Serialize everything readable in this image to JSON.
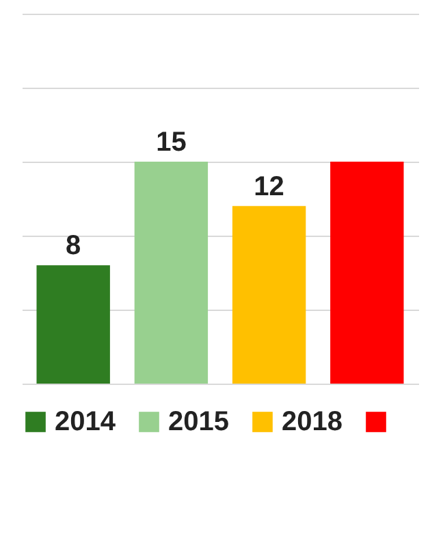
{
  "chart_data": {
    "type": "bar",
    "categories": [
      null,
      null,
      null,
      null
    ],
    "series": [
      {
        "name": "2014",
        "color": "#2f7d22",
        "values": [
          8,
          null,
          null,
          null
        ],
        "value_labels": [
          "8",
          null,
          null,
          null
        ]
      },
      {
        "name": "2015",
        "color": "#98d08f",
        "values": [
          null,
          15,
          null,
          null
        ],
        "value_labels": [
          null,
          "15",
          null,
          null
        ]
      },
      {
        "name": "2018",
        "color": "#ffc000",
        "values": [
          null,
          null,
          12,
          null
        ],
        "value_labels": [
          null,
          null,
          "12",
          null
        ]
      },
      {
        "color": "#ff0000",
        "values": [
          null,
          null,
          null,
          15
        ],
        "value_labels": [
          null,
          null,
          null,
          null
        ]
      }
    ],
    "stacked": true,
    "ylim": [
      0,
      25
    ],
    "yticks": [
      0,
      5,
      10,
      15,
      20,
      25
    ],
    "grid": "y",
    "tick_labels": false,
    "legend": "bottom"
  }
}
